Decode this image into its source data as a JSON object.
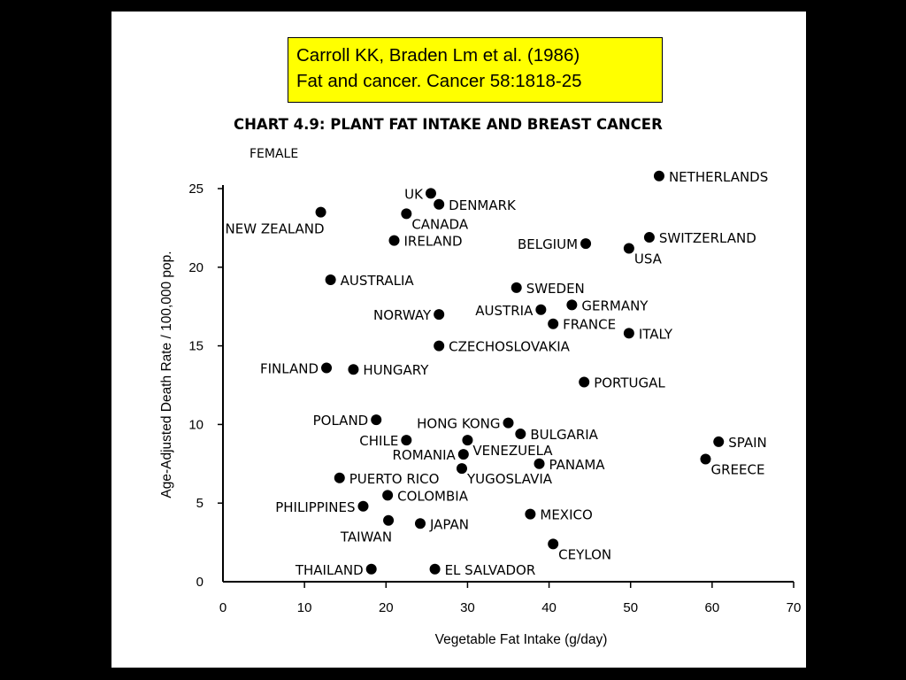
{
  "citation": {
    "line1": "Carroll KK, Braden Lm et al. (1986)",
    "line2": "Fat and cancer. Cancer 58:1818-25",
    "bg_color": "#ffff00"
  },
  "chart_data": {
    "type": "scatter",
    "title": "CHART 4.9: PLANT FAT INTAKE AND BREAST CANCER",
    "subtitle": "FEMALE",
    "xlabel": "Vegetable Fat Intake (g/day)",
    "ylabel": "Age-Adjusted Death Rate / 100,000 pop.",
    "xlim": [
      0,
      70
    ],
    "ylim": [
      0,
      25
    ],
    "xticks": [
      0,
      10,
      20,
      30,
      40,
      50,
      60,
      70
    ],
    "yticks": [
      0,
      5,
      10,
      15,
      20,
      25
    ],
    "grid": false,
    "marker_color": "#000000",
    "points": [
      {
        "label": "NETHERLANDS",
        "x": 53.5,
        "y": 25.8,
        "anchor": "right"
      },
      {
        "label": "UK",
        "x": 25.5,
        "y": 24.7,
        "anchor": "left"
      },
      {
        "label": "DENMARK",
        "x": 26.5,
        "y": 24.0,
        "anchor": "right"
      },
      {
        "label": "NEW ZEALAND",
        "x": 12.0,
        "y": 23.5,
        "anchor": "below-left"
      },
      {
        "label": "CANADA",
        "x": 22.5,
        "y": 23.4,
        "anchor": "below-right"
      },
      {
        "label": "IRELAND",
        "x": 21.0,
        "y": 21.7,
        "anchor": "right"
      },
      {
        "label": "BELGIUM",
        "x": 44.5,
        "y": 21.5,
        "anchor": "left"
      },
      {
        "label": "SWITZERLAND",
        "x": 52.3,
        "y": 21.9,
        "anchor": "right"
      },
      {
        "label": "USA",
        "x": 49.8,
        "y": 21.2,
        "anchor": "below-right"
      },
      {
        "label": "AUSTRALIA",
        "x": 13.2,
        "y": 19.2,
        "anchor": "right"
      },
      {
        "label": "SWEDEN",
        "x": 36.0,
        "y": 18.7,
        "anchor": "right"
      },
      {
        "label": "GERMANY",
        "x": 42.8,
        "y": 17.6,
        "anchor": "right"
      },
      {
        "label": "AUSTRIA",
        "x": 39.0,
        "y": 17.3,
        "anchor": "left"
      },
      {
        "label": "NORWAY",
        "x": 26.5,
        "y": 17.0,
        "anchor": "left"
      },
      {
        "label": "FRANCE",
        "x": 40.5,
        "y": 16.4,
        "anchor": "right"
      },
      {
        "label": "ITALY",
        "x": 49.8,
        "y": 15.8,
        "anchor": "right"
      },
      {
        "label": "CZECHOSLOVAKIA",
        "x": 26.5,
        "y": 15.0,
        "anchor": "right"
      },
      {
        "label": "FINLAND",
        "x": 12.7,
        "y": 13.6,
        "anchor": "left"
      },
      {
        "label": "HUNGARY",
        "x": 16.0,
        "y": 13.5,
        "anchor": "right"
      },
      {
        "label": "PORTUGAL",
        "x": 44.3,
        "y": 12.7,
        "anchor": "right"
      },
      {
        "label": "POLAND",
        "x": 18.8,
        "y": 10.3,
        "anchor": "left"
      },
      {
        "label": "HONG KONG",
        "x": 35.0,
        "y": 10.1,
        "anchor": "left"
      },
      {
        "label": "BULGARIA",
        "x": 36.5,
        "y": 9.4,
        "anchor": "right"
      },
      {
        "label": "CHILE",
        "x": 22.5,
        "y": 9.0,
        "anchor": "left"
      },
      {
        "label": "VENEZUELA",
        "x": 30.0,
        "y": 9.0,
        "anchor": "below-right"
      },
      {
        "label": "SPAIN",
        "x": 60.8,
        "y": 8.9,
        "anchor": "right"
      },
      {
        "label": "ROMANIA",
        "x": 29.5,
        "y": 8.1,
        "anchor": "left"
      },
      {
        "label": "GREECE",
        "x": 59.2,
        "y": 7.8,
        "anchor": "below-right"
      },
      {
        "label": "PANAMA",
        "x": 38.8,
        "y": 7.5,
        "anchor": "right"
      },
      {
        "label": "YUGOSLAVIA",
        "x": 29.3,
        "y": 7.2,
        "anchor": "below-right"
      },
      {
        "label": "PUERTO RICO",
        "x": 14.3,
        "y": 6.6,
        "anchor": "right"
      },
      {
        "label": "COLOMBIA",
        "x": 20.2,
        "y": 5.5,
        "anchor": "right"
      },
      {
        "label": "PHILIPPINES",
        "x": 17.2,
        "y": 4.8,
        "anchor": "left"
      },
      {
        "label": "MEXICO",
        "x": 37.7,
        "y": 4.3,
        "anchor": "right"
      },
      {
        "label": "TAIWAN",
        "x": 20.3,
        "y": 3.9,
        "anchor": "below-left"
      },
      {
        "label": "JAPAN",
        "x": 24.2,
        "y": 3.7,
        "anchor": "right"
      },
      {
        "label": "CEYLON",
        "x": 40.5,
        "y": 2.4,
        "anchor": "below-right"
      },
      {
        "label": "THAILAND",
        "x": 18.2,
        "y": 0.8,
        "anchor": "left"
      },
      {
        "label": "EL SALVADOR",
        "x": 26.0,
        "y": 0.8,
        "anchor": "right"
      }
    ]
  }
}
